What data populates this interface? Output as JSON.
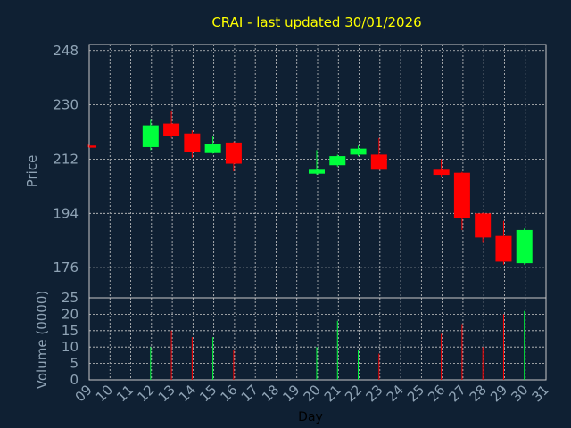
{
  "chart_data": {
    "type": "candlestick",
    "title": "CRAI - last updated 30/01/2026",
    "xlabel": "Day",
    "price_ylabel": "Price",
    "volume_ylabel": "Volume (0000)",
    "x_ticks": [
      "09",
      "10",
      "11",
      "12",
      "13",
      "14",
      "15",
      "16",
      "17",
      "18",
      "19",
      "20",
      "21",
      "22",
      "23",
      "24",
      "25",
      "26",
      "27",
      "28",
      "29",
      "30",
      "31"
    ],
    "price_ticks": [
      "176",
      "194",
      "212",
      "230",
      "248"
    ],
    "volume_ticks": [
      "0",
      "5",
      "10",
      "15",
      "20",
      "25"
    ],
    "price_ylim": [
      166,
      250
    ],
    "volume_ylim": [
      0,
      25
    ],
    "grid": true,
    "colors": {
      "up": "#00ff3c",
      "down": "#ff0000",
      "background": "#0f2033",
      "grid": "#c8c8c8",
      "title": "#ffff00",
      "axis_text": "#8fa3b5"
    },
    "candles": [
      {
        "day": 9,
        "open": 216.5,
        "high": 216.8,
        "low": 215.9,
        "close": 215.8,
        "volume": 0
      },
      {
        "day": 12,
        "open": 216.0,
        "high": 225.0,
        "low": 215.0,
        "close": 223.2,
        "volume": 10
      },
      {
        "day": 13,
        "open": 223.8,
        "high": 228.0,
        "low": 219.0,
        "close": 219.8,
        "volume": 15
      },
      {
        "day": 14,
        "open": 220.5,
        "high": 221.5,
        "low": 212.5,
        "close": 214.5,
        "volume": 13
      },
      {
        "day": 15,
        "open": 214.0,
        "high": 219.5,
        "low": 213.8,
        "close": 217.0,
        "volume": 13
      },
      {
        "day": 16,
        "open": 217.5,
        "high": 217.8,
        "low": 208.0,
        "close": 210.5,
        "volume": 9
      },
      {
        "day": 20,
        "open": 207.2,
        "high": 215.0,
        "low": 206.8,
        "close": 208.5,
        "volume": 10
      },
      {
        "day": 21,
        "open": 210.0,
        "high": 213.5,
        "low": 209.5,
        "close": 213.0,
        "volume": 18
      },
      {
        "day": 22,
        "open": 213.5,
        "high": 216.5,
        "low": 213.0,
        "close": 215.5,
        "volume": 9
      },
      {
        "day": 23,
        "open": 213.5,
        "high": 219.0,
        "low": 208.5,
        "close": 208.5,
        "volume": 8
      },
      {
        "day": 26,
        "open": 208.5,
        "high": 212.0,
        "low": 206.0,
        "close": 206.8,
        "volume": 14
      },
      {
        "day": 27,
        "open": 207.5,
        "high": 207.8,
        "low": 188.5,
        "close": 192.5,
        "volume": 17
      },
      {
        "day": 28,
        "open": 194.0,
        "high": 194.2,
        "low": 184.5,
        "close": 186.0,
        "volume": 10
      },
      {
        "day": 29,
        "open": 186.5,
        "high": 191.5,
        "low": 177.0,
        "close": 178.0,
        "volume": 20
      },
      {
        "day": 30,
        "open": 177.5,
        "high": 189.0,
        "low": 177.0,
        "close": 188.5,
        "volume": 21
      }
    ]
  }
}
